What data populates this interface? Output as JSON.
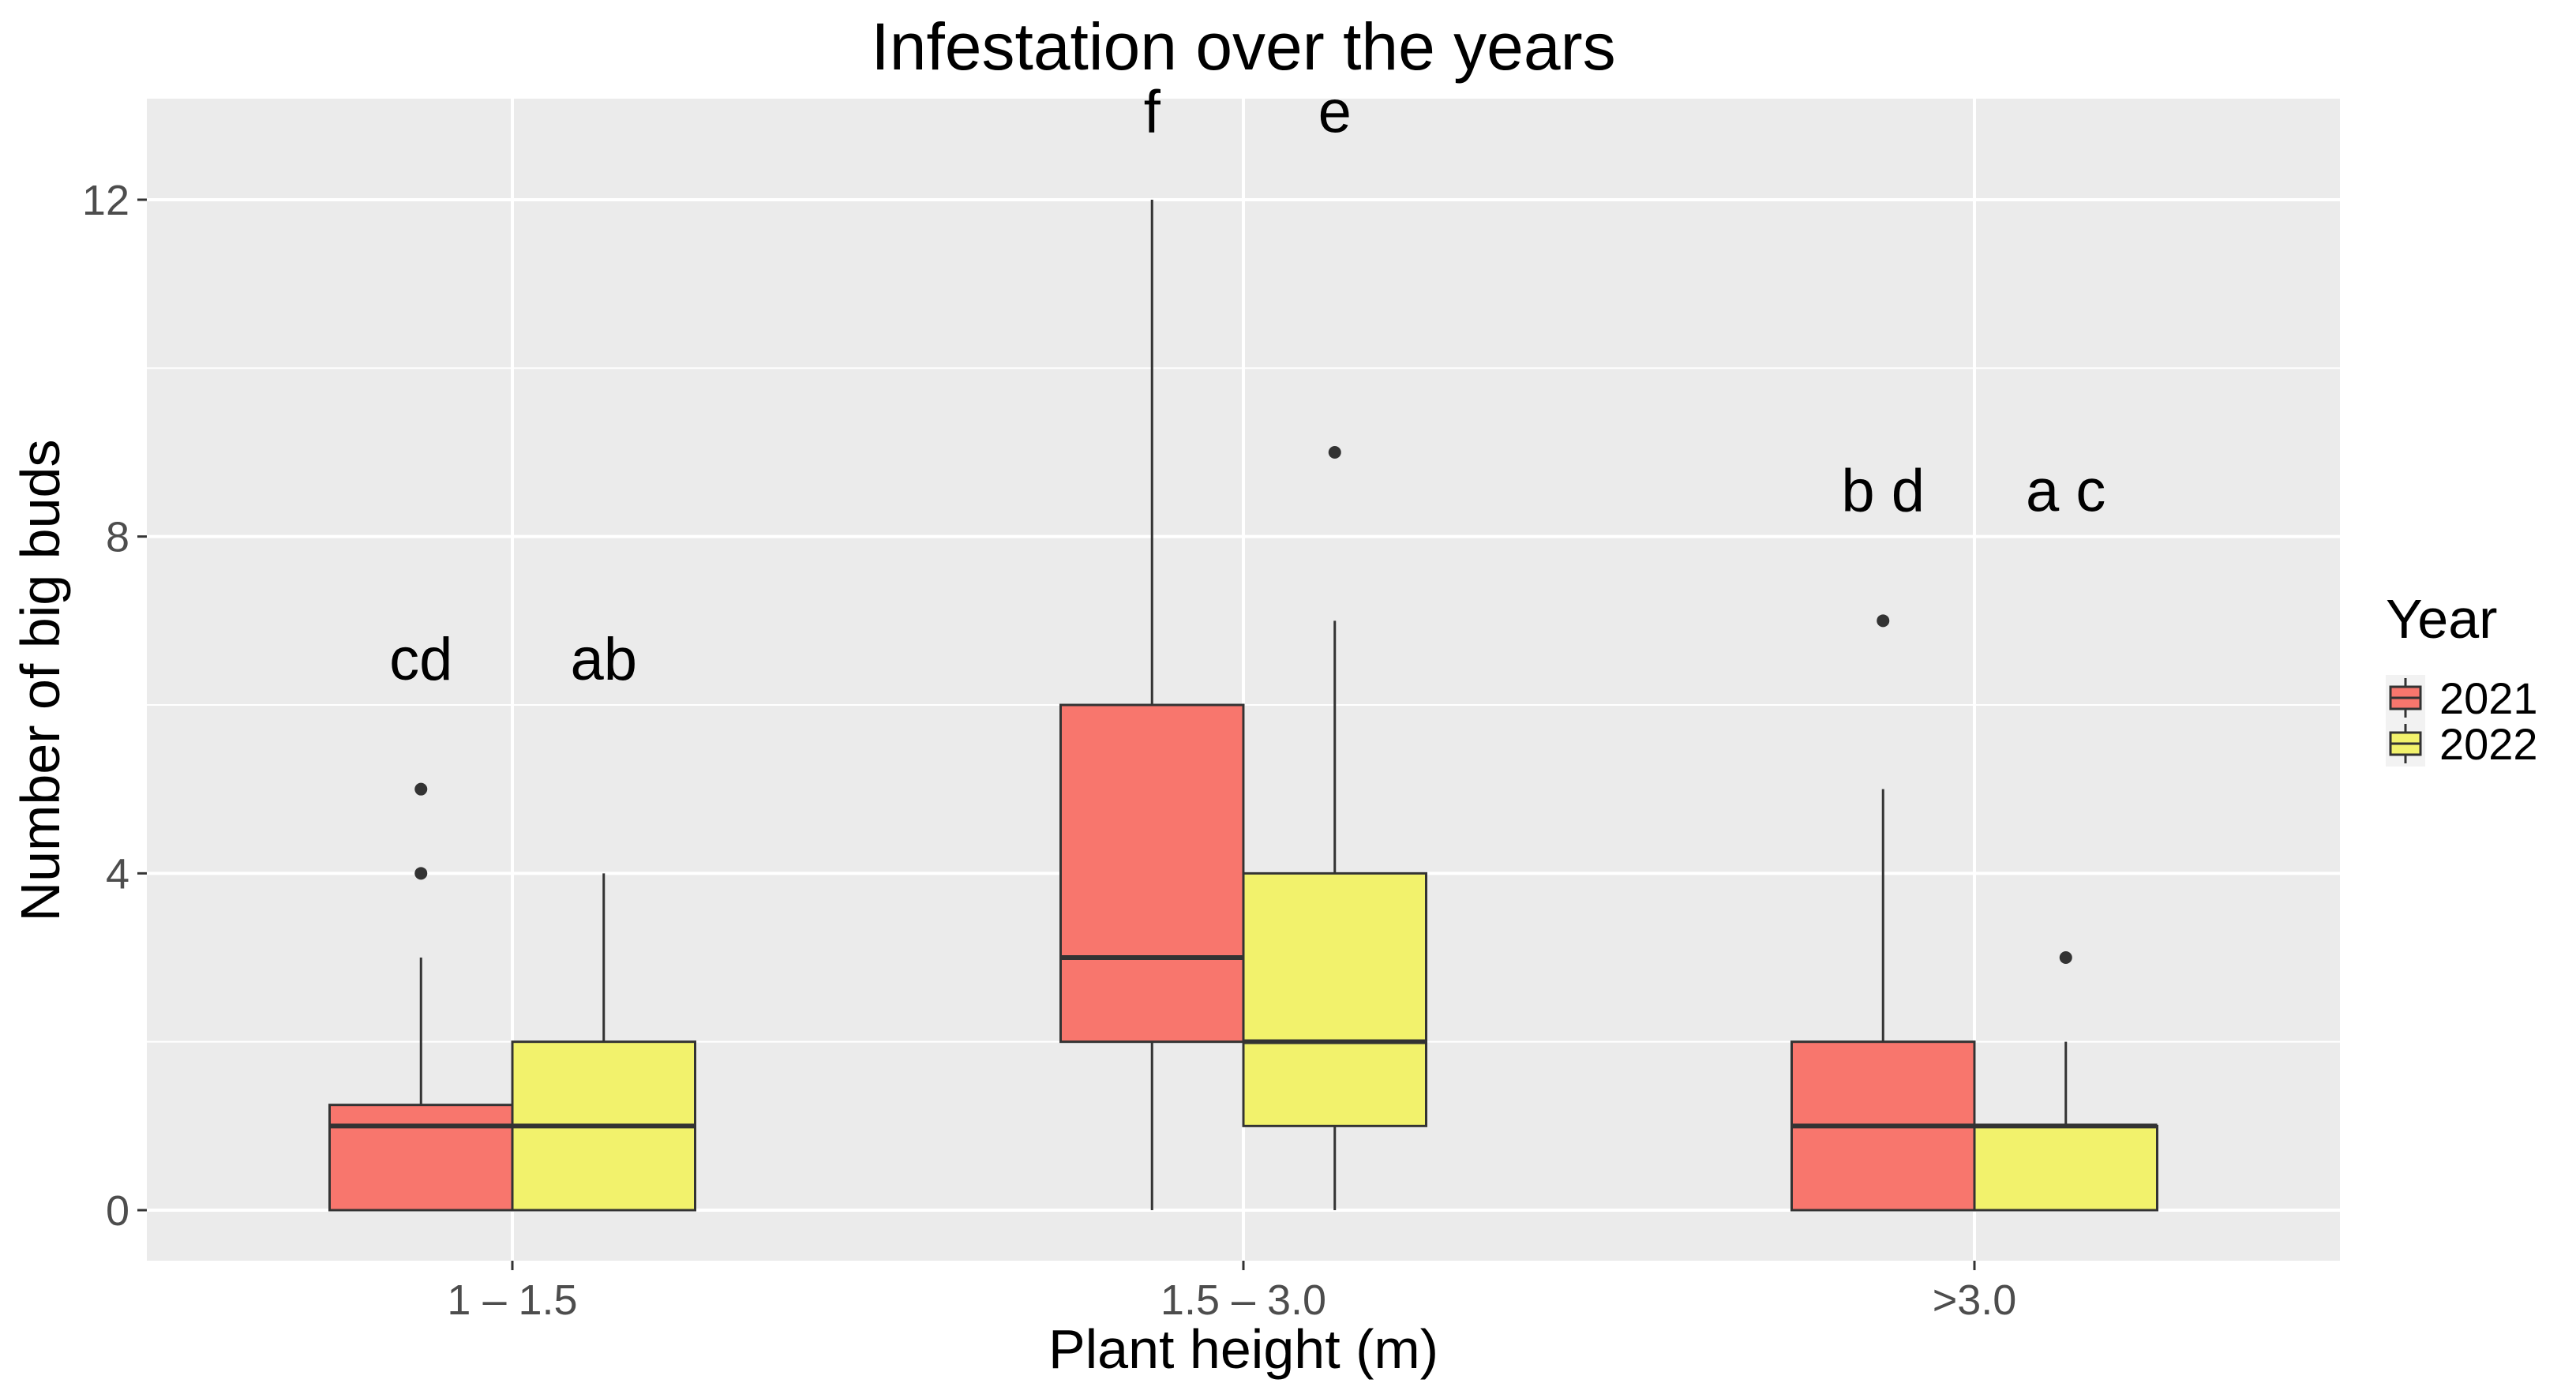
{
  "chart_data": {
    "type": "boxplot",
    "title": "Infestation over the years",
    "xlabel": "Plant height (m)",
    "ylabel": "Number of big buds",
    "ylim": [
      -0.6,
      13.2
    ],
    "yticks": [
      0,
      4,
      8,
      12
    ],
    "categories": [
      "1 – 1.5",
      "1.5 – 3.0",
      ">3.0"
    ],
    "legend": {
      "title": "Year",
      "position": "right"
    },
    "series": [
      {
        "name": "2021",
        "color": "#F8766D",
        "boxes": [
          {
            "q1": 0,
            "median": 1,
            "q3": 1.25,
            "whisker_low": 0,
            "whisker_high": 3,
            "outliers": [
              4,
              5
            ]
          },
          {
            "q1": 2,
            "median": 3,
            "q3": 6,
            "whisker_low": 0,
            "whisker_high": 12,
            "outliers": []
          },
          {
            "q1": 0,
            "median": 1,
            "q3": 2,
            "whisker_low": 0,
            "whisker_high": 5,
            "outliers": [
              7
            ]
          }
        ]
      },
      {
        "name": "2022",
        "color": "#F2F26C",
        "boxes": [
          {
            "q1": 0,
            "median": 1,
            "q3": 2,
            "whisker_low": 0,
            "whisker_high": 4,
            "outliers": []
          },
          {
            "q1": 1,
            "median": 2,
            "q3": 4,
            "whisker_low": 0,
            "whisker_high": 7,
            "outliers": [
              9
            ]
          },
          {
            "q1": 0,
            "median": 1,
            "q3": 1,
            "whisker_low": 0,
            "whisker_high": 2,
            "outliers": [
              3
            ]
          }
        ]
      }
    ],
    "annotations": [
      {
        "text": "cd",
        "category": 0,
        "series": 0,
        "y": 6.3
      },
      {
        "text": "ab",
        "category": 0,
        "series": 1,
        "y": 6.3
      },
      {
        "text": "f",
        "category": 1,
        "series": 0,
        "y": 12.8
      },
      {
        "text": "e",
        "category": 1,
        "series": 1,
        "y": 12.8
      },
      {
        "text": "b d",
        "category": 2,
        "series": 0,
        "y": 8.3
      },
      {
        "text": "a c",
        "category": 2,
        "series": 1,
        "y": 8.3
      }
    ]
  }
}
